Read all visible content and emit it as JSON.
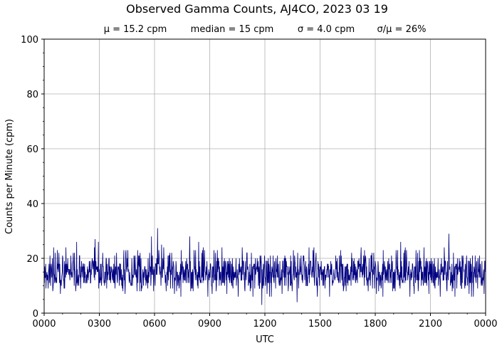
{
  "chart_data": {
    "type": "line",
    "title": "Observed Gamma Counts, AJ4CO, 2023 03 19",
    "stats": [
      "μ = 15.2 cpm",
      "median = 15 cpm",
      "σ = 4.0 cpm",
      "σ/μ = 26%"
    ],
    "xlabel": "UTC",
    "ylabel": "Counts per Minute (cpm)",
    "x_ticks": [
      "0000",
      "0300",
      "0600",
      "0900",
      "1200",
      "1500",
      "1800",
      "2100",
      "0000"
    ],
    "y_ticks": [
      "0",
      "20",
      "40",
      "60",
      "80",
      "100"
    ],
    "xlim": [
      "00:00",
      "24:00"
    ],
    "ylim": [
      0,
      100
    ],
    "grid": true,
    "series": [
      {
        "color": "#000080",
        "x_start": "00:00",
        "x_step_minutes": 1,
        "summary": {
          "mean": 15.2,
          "median": 15,
          "stdev": 4.0,
          "min": 3,
          "max": 31
        },
        "values": []
      }
    ],
    "notable_points": [
      {
        "x": "06:10",
        "y": 31
      },
      {
        "x": "22:00",
        "y": 29
      },
      {
        "x": "05:50",
        "y": 28
      },
      {
        "x": "07:55",
        "y": 28
      },
      {
        "x": "11:50",
        "y": 3
      },
      {
        "x": "13:45",
        "y": 4
      }
    ]
  }
}
